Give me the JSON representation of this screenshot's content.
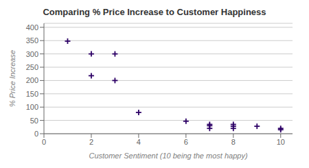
{
  "chart_data": {
    "type": "scatter",
    "title": "Comparing % Price Increase to Customer Happiness",
    "xlabel": "Customer Sentiment (10 being the most happy)",
    "ylabel": "% Price Increase",
    "x": [
      1,
      2,
      2,
      3,
      3,
      4,
      6,
      7,
      7,
      7,
      8,
      8,
      8,
      9,
      10,
      10
    ],
    "y": [
      348,
      300,
      218,
      300,
      200,
      80,
      47,
      35,
      30,
      20,
      35,
      28,
      20,
      28,
      20,
      15
    ],
    "color": "#2d0066",
    "marker": "plus",
    "xlim": [
      0,
      10.5
    ],
    "ylim": [
      0,
      415
    ],
    "xticks": [
      0,
      2,
      4,
      6,
      8,
      10
    ],
    "yticks": [
      0,
      50,
      100,
      150,
      200,
      250,
      300,
      350,
      400
    ],
    "grid": "y"
  }
}
